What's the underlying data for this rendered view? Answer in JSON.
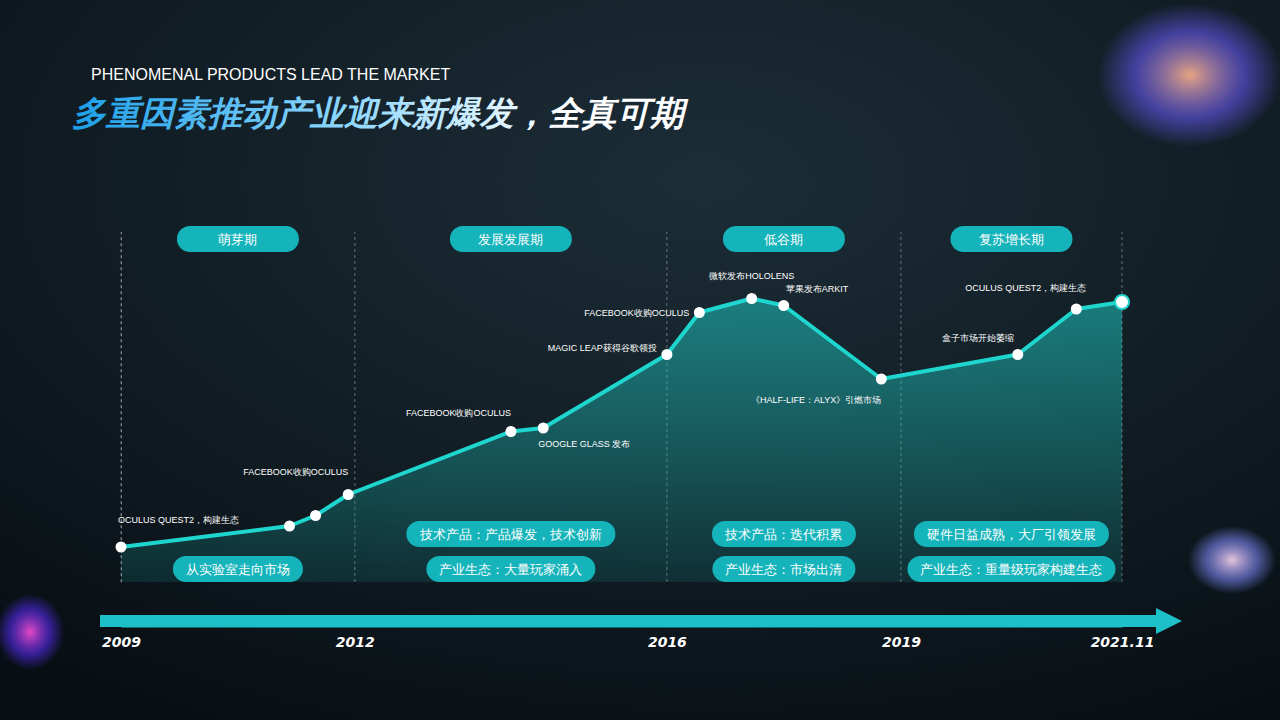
{
  "chart_data": {
    "type": "area",
    "subtitle": "PHENOMENAL PRODUCTS LEAD THE MARKET",
    "title": "多重因素推动产业迎来新爆发，全真可期",
    "x": [
      "2009-01",
      "2011-03",
      "2011-07",
      "2011-12",
      "2014-01",
      "2014-06",
      "2016-01",
      "2016-06",
      "2017-02",
      "2017-07",
      "2018-10",
      "2020-07",
      "2021-04",
      "2021-11"
    ],
    "values": [
      10,
      16,
      19,
      25,
      43,
      44,
      65,
      77,
      81,
      79,
      58,
      65,
      78,
      80
    ],
    "point_labels": [
      "OCULUS QUEST2，构建生态",
      null,
      null,
      "FACEBOOK收购OCULUS",
      "FACEBOOK收购OCULUS",
      "GOOGLE GLASS 发布",
      "MAGIC LEAP获得谷歌领投",
      "FACEBOOK收购OCULUS",
      "微软发布HOLOLENS",
      "苹果发布ARKIT",
      "《HALF-LIFE：ALYX》引燃市场",
      "盒子市场开始萎缩",
      "OCULUS QUEST2，构建生态",
      null
    ],
    "color": "#1fd6cf",
    "marker": "circle",
    "xlim": [
      "2009-01",
      "2021-11"
    ],
    "xticks": [
      {
        "value": "2009-01",
        "label": "2009"
      },
      {
        "value": "2012-01",
        "label": "2012"
      },
      {
        "value": "2016-01",
        "label": "2016"
      },
      {
        "value": "2019-01",
        "label": "2019"
      },
      {
        "value": "2021-11",
        "label": "2021.11"
      }
    ],
    "ylim": [
      0,
      100
    ],
    "tick_labels": "x",
    "grid": true,
    "phases": [
      {
        "name": "萌芽期",
        "notes": [
          "从实验室走向市场"
        ]
      },
      {
        "name": "发展发展期",
        "notes": [
          "技术产品：产品爆发，技术创新",
          "产业生态：大量玩家涌入"
        ]
      },
      {
        "name": "低谷期",
        "notes": [
          "技术产品：迭代积累",
          "产业生态：市场出清"
        ]
      },
      {
        "name": "复苏增长期",
        "notes": [
          "硬件日益成熟，大厂引领发展",
          "产业生态：重量级玩家构建生态"
        ]
      }
    ]
  }
}
